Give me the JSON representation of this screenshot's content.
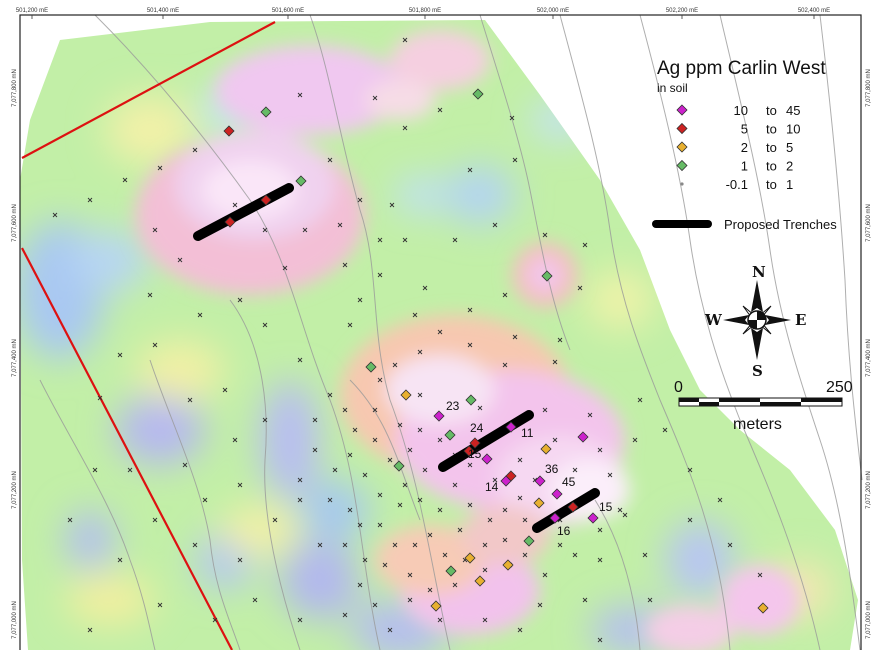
{
  "map": {
    "top_ticks": [
      "501,200 mE",
      "501,400 mE",
      "501,600 mE",
      "501,800 mE",
      "502,000 mE",
      "502,200 mE",
      "502,400 mE"
    ],
    "left_ticks": [
      "7,077,800 mN",
      "7,077,600 mN",
      "7,077,400 mN",
      "7,077,200 mN",
      "7,077,000 mN"
    ],
    "right_ticks": [
      "7,077,800 mN",
      "7,077,600 mN",
      "7,077,400 mN",
      "7,077,200 mN",
      "7,077,000 mN"
    ]
  },
  "legend": {
    "title": "Ag ppm Carlin West",
    "subtitle": "in soil",
    "classes": [
      {
        "from": "10",
        "sep": "to",
        "to": "45",
        "color": "#cc22cc",
        "symbol": "diamond"
      },
      {
        "from": "5",
        "sep": "to",
        "to": "10",
        "color": "#cc2222",
        "symbol": "diamond"
      },
      {
        "from": "2",
        "sep": "to",
        "to": "5",
        "color": "#e8b030",
        "symbol": "diamond"
      },
      {
        "from": "1",
        "sep": "to",
        "to": "2",
        "color": "#66bb66",
        "symbol": "diamond"
      },
      {
        "from": "-0.1",
        "sep": "to",
        "to": "1",
        "color": "#888888",
        "symbol": "dot"
      }
    ],
    "trench_label": "Proposed Trenches"
  },
  "compass": {
    "n": "N",
    "s": "S",
    "e": "E",
    "w": "W"
  },
  "scale_bar": {
    "min": "0",
    "max": "250",
    "unit": "meters"
  },
  "sample_labels": [
    "23",
    "24",
    "11",
    "15",
    "14",
    "36",
    "45",
    "15",
    "16"
  ],
  "colors": {
    "anomaly_high": "#f4c6f0",
    "anomaly_medium": "#f8c9a8",
    "background_green": "#c2efa7",
    "background_low": "#c4dcf6",
    "claim_boundary": "#dd1111",
    "contour": "#9a9a9a",
    "trench": "#000000"
  }
}
